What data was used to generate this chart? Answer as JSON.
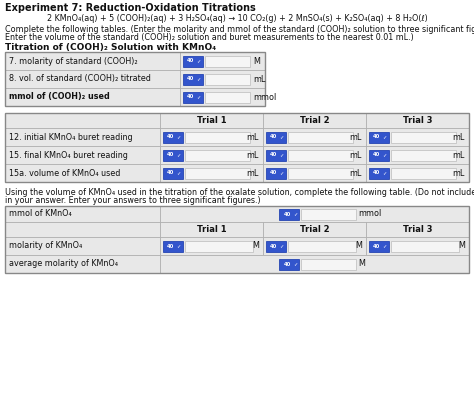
{
  "title": "Experiment 7: Reduction-Oxidation Titrations",
  "equation": "2 KMnO₄(aq) + 5 (COOH)₂(aq) + 3 H₂SO₄(aq) → 10 CO₂(g) + 2 MnSO₄(s) + K₂SO₄(aq) + 8 H₂O(ℓ)",
  "instructions1": "Complete the following tables. (Enter the molarity and mmol of the standard (COOH)₂ solution to three significant figures.",
  "instructions2": "Enter the volume of the standard (COOH)₂ solution and buret measurements to the nearest 0.01 mL.)",
  "section1_title": "Titration of (COOH)₂ Solution with KMnO₄",
  "table1_rows": [
    "7. molarity of standard (COOH)₂",
    "8. vol. of standard (COOH)₂ titrated",
    "mmol of (COOH)₂ used"
  ],
  "table1_units": [
    "M",
    "mL",
    "mmol"
  ],
  "trial_headers": [
    "Trial 1",
    "Trial 2",
    "Trial 3"
  ],
  "table2_rows": [
    "12. initial KMnO₄ buret reading",
    "15. final KMnO₄ buret reading",
    "15a. volume of KMnO₄ used"
  ],
  "table2_unit": "mL",
  "instructions3": "Using the volume of KMnO₄ used in the titration of the oxalate solution, complete the following table. (Do not include units",
  "instructions4": "in your answer. Enter your answers to three significant figures.)",
  "table3_mmol_label": "mmol of KMnO₄",
  "table3_mmol_unit": "mmol",
  "table3_rows": [
    "molarity of KMnO₄",
    "average molarity of KMnO₄"
  ],
  "table3_unit": "M",
  "bg_color": "#ffffff",
  "cell_bg_light": "#e8e8e8",
  "cell_bg_dark": "#c8c8c8",
  "input_bg": "#f5f5f5",
  "btn_bg": "#3355cc",
  "border_color": "#aaaaaa",
  "text_color": "#111111"
}
